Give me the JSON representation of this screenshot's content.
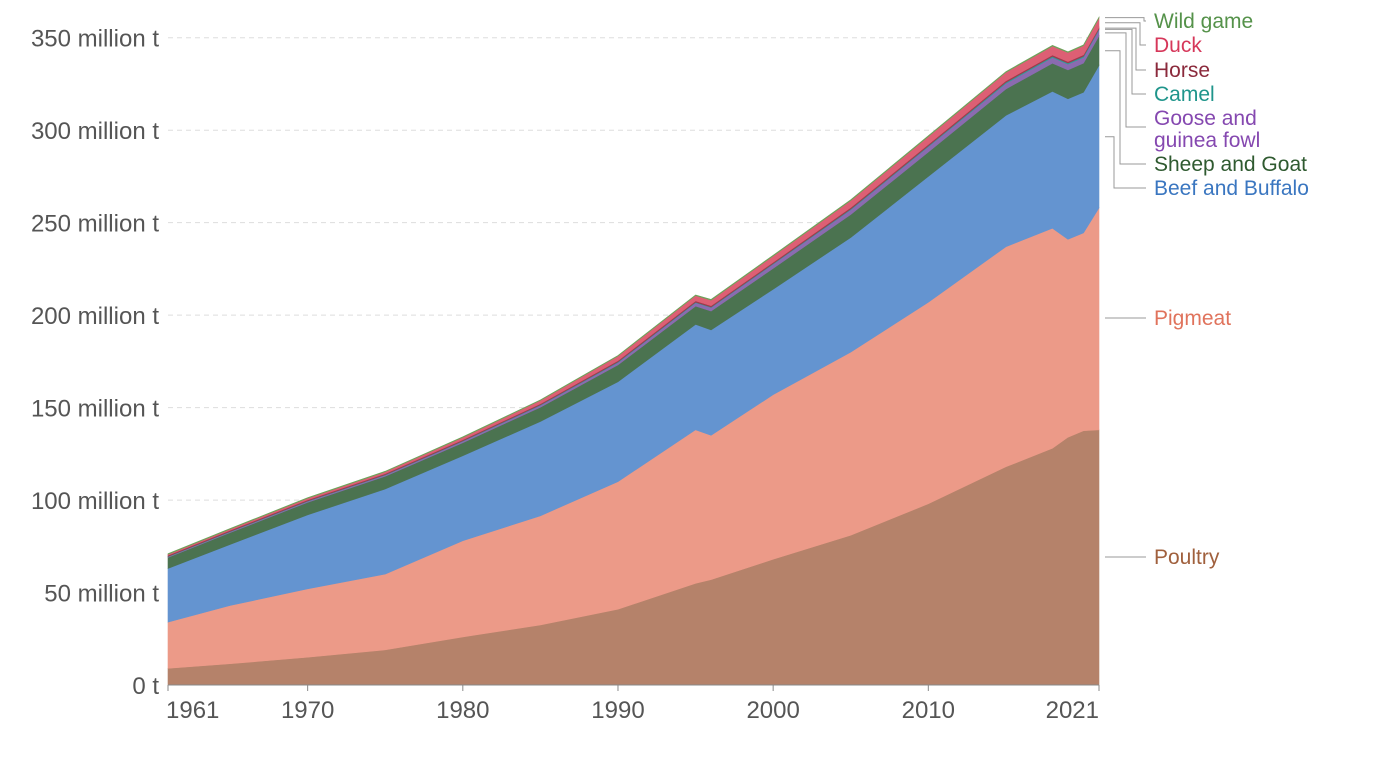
{
  "chart_data": {
    "type": "area",
    "stacked": true,
    "title": "",
    "xlabel": "",
    "ylabel": "",
    "ylim": [
      0,
      365000000
    ],
    "xlim": [
      1961,
      2021
    ],
    "y_ticks": [
      {
        "value": 0,
        "label": "0 t"
      },
      {
        "value": 50000000,
        "label": "50 million t"
      },
      {
        "value": 100000000,
        "label": "100 million t"
      },
      {
        "value": 150000000,
        "label": "150 million t"
      },
      {
        "value": 200000000,
        "label": "200 million t"
      },
      {
        "value": 250000000,
        "label": "250 million t"
      },
      {
        "value": 300000000,
        "label": "300 million t"
      },
      {
        "value": 350000000,
        "label": "350 million t"
      }
    ],
    "x_ticks": [
      {
        "value": 1961,
        "label": "1961"
      },
      {
        "value": 1970,
        "label": "1970"
      },
      {
        "value": 1980,
        "label": "1980"
      },
      {
        "value": 1990,
        "label": "1990"
      },
      {
        "value": 2000,
        "label": "2000"
      },
      {
        "value": 2010,
        "label": "2010"
      },
      {
        "value": 2021,
        "label": "2021"
      }
    ],
    "x": [
      1961,
      1965,
      1970,
      1975,
      1980,
      1985,
      1990,
      1995,
      1996,
      2000,
      2005,
      2010,
      2015,
      2018,
      2019,
      2020,
      2021
    ],
    "series": [
      {
        "name": "Poultry",
        "color": "#b5826a",
        "label_color": "#a0603d",
        "values": [
          9000000,
          11500000,
          15000000,
          19000000,
          26000000,
          32500000,
          41000000,
          55000000,
          57000000,
          68000000,
          81000000,
          98000000,
          118000000,
          128000000,
          134000000,
          137500000,
          138000000
        ]
      },
      {
        "name": "Pigmeat",
        "color": "#ec9a88",
        "label_color": "#e0735c",
        "values": [
          25000000,
          31500000,
          37000000,
          41000000,
          52000000,
          59000000,
          69000000,
          83000000,
          78000000,
          89000000,
          99000000,
          109000000,
          119000000,
          119000000,
          107000000,
          107000000,
          120000000
        ]
      },
      {
        "name": "Beef and Buffalo",
        "color": "#6494d0",
        "label_color": "#3a76c0",
        "values": [
          29000000,
          33000000,
          40000000,
          46000000,
          46000000,
          51000000,
          54000000,
          57000000,
          57000000,
          57000000,
          62000000,
          68000000,
          71000000,
          74000000,
          76000000,
          76000000,
          77000000
        ]
      },
      {
        "name": "Sheep and Goat",
        "color": "#4b7350",
        "label_color": "#2f5a30",
        "values": [
          6000000,
          6400000,
          6800000,
          6900000,
          7000000,
          7700000,
          9100000,
          9900000,
          10200000,
          11300000,
          12400000,
          13200000,
          14300000,
          15200000,
          15600000,
          15800000,
          16000000
        ]
      },
      {
        "name": "Goose and guinea fowl",
        "color": "#8a6bb0",
        "label_color": "#8548b0",
        "values": [
          300000,
          400000,
          500000,
          600000,
          800000,
          1000000,
          1300000,
          1800000,
          1900000,
          2300000,
          2600000,
          2900000,
          3000000,
          3100000,
          3100000,
          3100000,
          3200000
        ]
      },
      {
        "name": "Camel",
        "color": "#2e9e96",
        "label_color": "#1f958b",
        "values": [
          200000,
          200000,
          200000,
          200000,
          200000,
          300000,
          300000,
          300000,
          300000,
          300000,
          400000,
          400000,
          600000,
          600000,
          600000,
          600000,
          600000
        ]
      },
      {
        "name": "Horse",
        "color": "#9e3a4e",
        "label_color": "#8b2a3c",
        "values": [
          600000,
          600000,
          600000,
          600000,
          600000,
          600000,
          700000,
          700000,
          700000,
          700000,
          800000,
          800000,
          800000,
          800000,
          800000,
          800000,
          800000
        ]
      },
      {
        "name": "Duck",
        "color": "#dd5f74",
        "label_color": "#d6375a",
        "values": [
          600000,
          700000,
          900000,
          1000000,
          1300000,
          1800000,
          2500000,
          2900000,
          3000000,
          3400000,
          3800000,
          4300000,
          4600000,
          4800000,
          4900000,
          4900000,
          5100000
        ]
      },
      {
        "name": "Wild game",
        "color": "#6da35a",
        "label_color": "#55924a",
        "values": [
          300000,
          300000,
          300000,
          300000,
          300000,
          300000,
          300000,
          300000,
          400000,
          400000,
          400000,
          400000,
          400000,
          400000,
          400000,
          400000,
          400000
        ]
      }
    ],
    "legend": {
      "placement": "right",
      "entries": [
        {
          "series": "Wild game",
          "lines": [
            "Wild game"
          ]
        },
        {
          "series": "Duck",
          "lines": [
            "Duck"
          ]
        },
        {
          "series": "Horse",
          "lines": [
            "Horse"
          ]
        },
        {
          "series": "Camel",
          "lines": [
            "Camel"
          ]
        },
        {
          "series": "Goose and guinea fowl",
          "lines": [
            "Goose and",
            "guinea fowl"
          ]
        },
        {
          "series": "Sheep and Goat",
          "lines": [
            "Sheep and Goat"
          ]
        },
        {
          "series": "Beef and Buffalo",
          "lines": [
            "Beef and Buffalo"
          ]
        },
        {
          "series": "Pigmeat",
          "lines": [
            "Pigmeat"
          ]
        },
        {
          "series": "Poultry",
          "lines": [
            "Poultry"
          ]
        }
      ]
    },
    "grid": true,
    "axis_color": "#888888",
    "grid_color": "#dddddd",
    "leader_color": "#999999",
    "tick_text_color": "#555555"
  }
}
